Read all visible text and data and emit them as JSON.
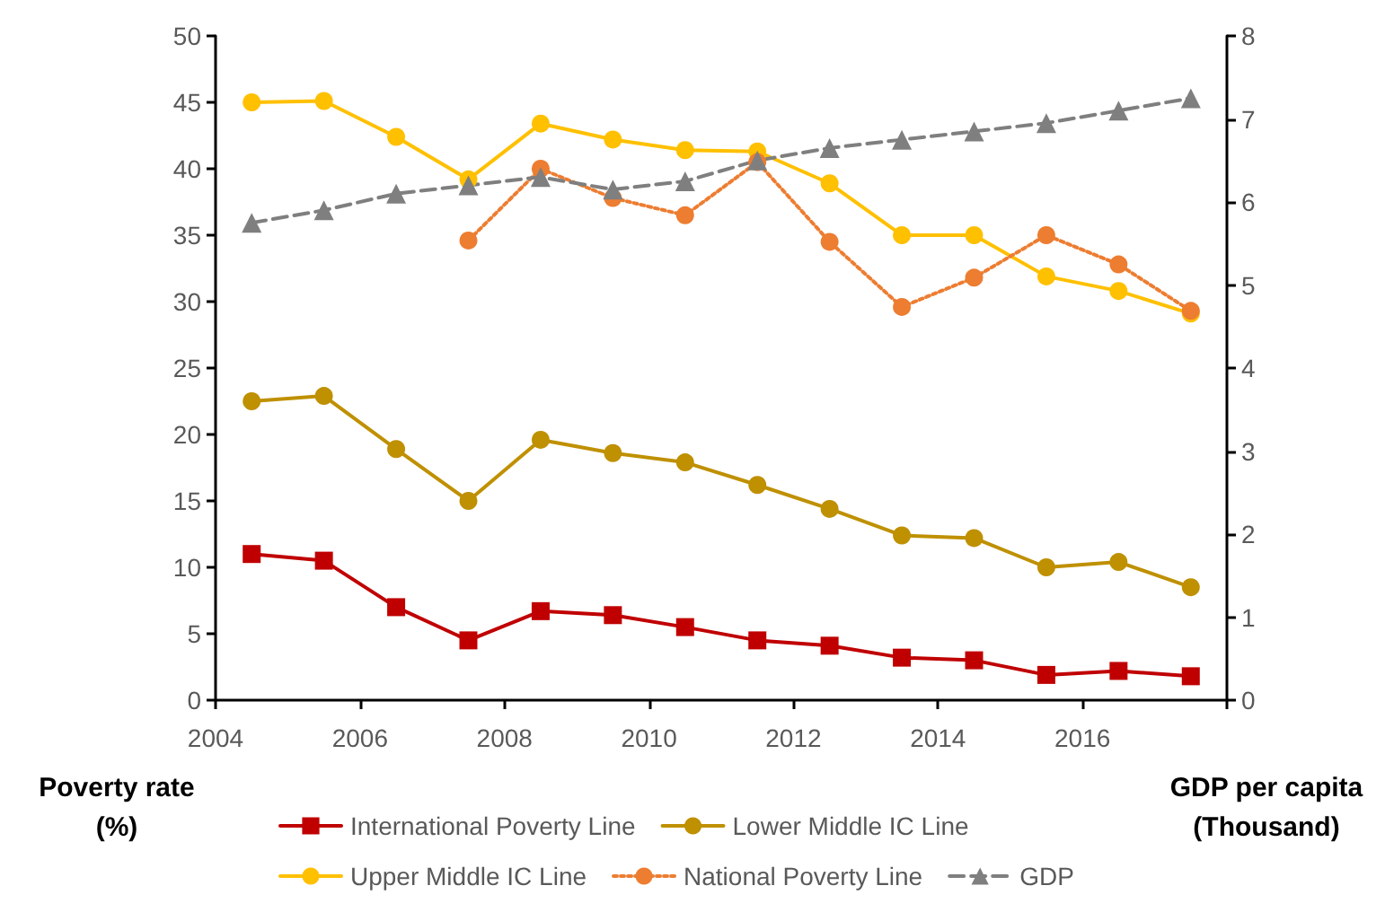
{
  "chart_data": {
    "type": "line",
    "xlabel": null,
    "ylabel": "Poverty rate\n(%)",
    "y2label": "GDP per capita\n(Thousand)",
    "x": [
      2004.5,
      2005.5,
      2006.5,
      2007.5,
      2008.5,
      2009.5,
      2010.5,
      2011.5,
      2012.5,
      2013.5,
      2014.5,
      2015.5,
      2016.5,
      2017.5
    ],
    "xlim": [
      2004,
      2018
    ],
    "xticks": [
      2004,
      2006,
      2008,
      2010,
      2012,
      2014,
      2016,
      {
        "value": 2018,
        "label": null
      }
    ],
    "ylim": [
      0,
      50
    ],
    "yticks": [
      0,
      5,
      10,
      15,
      20,
      25,
      30,
      35,
      40,
      45,
      50
    ],
    "y2lim": [
      0,
      8
    ],
    "y2ticks": [
      0,
      1,
      2,
      3,
      4,
      5,
      6,
      7,
      8
    ],
    "grid": false,
    "legend": "bottom",
    "series": [
      {
        "name": "International Poverty Line",
        "color": "#c00000",
        "marker": "square",
        "line_style": "solid",
        "values": [
          11,
          10.5,
          7,
          4.5,
          6.7,
          6.4,
          5.5,
          4.5,
          4.1,
          3.2,
          3.0,
          1.9,
          2.2,
          1.8
        ]
      },
      {
        "name": "Lower Middle IC Line",
        "color": "#bf9000",
        "marker": "circle",
        "line_style": "solid",
        "values": [
          22.5,
          22.9,
          18.9,
          15,
          19.6,
          18.6,
          17.9,
          16.2,
          14.4,
          12.4,
          12.2,
          10,
          10.4,
          8.5
        ]
      },
      {
        "name": "Upper Middle IC Line",
        "color": "#ffc000",
        "marker": "circle",
        "line_style": "solid",
        "values": [
          45,
          45.1,
          42.4,
          39.2,
          43.4,
          42.2,
          41.4,
          41.3,
          38.9,
          35,
          35,
          31.9,
          30.8,
          29.1
        ]
      },
      {
        "name": "National Poverty Line",
        "color": "#ed7d31",
        "marker": "circle",
        "line_style": "dotted",
        "values": [
          null,
          null,
          null,
          34.6,
          40,
          37.8,
          36.5,
          40.5,
          34.5,
          29.6,
          31.8,
          35,
          32.8,
          29.3
        ]
      },
      {
        "name": "GDP",
        "color": "#7f7f7f",
        "marker": "triangle",
        "line_style": "dashed",
        "axis": "y2",
        "values": [
          5.75,
          5.9,
          6.1,
          6.2,
          6.3,
          6.15,
          6.25,
          6.5,
          6.65,
          6.75,
          6.85,
          6.95,
          7.1,
          7.25
        ]
      }
    ]
  }
}
